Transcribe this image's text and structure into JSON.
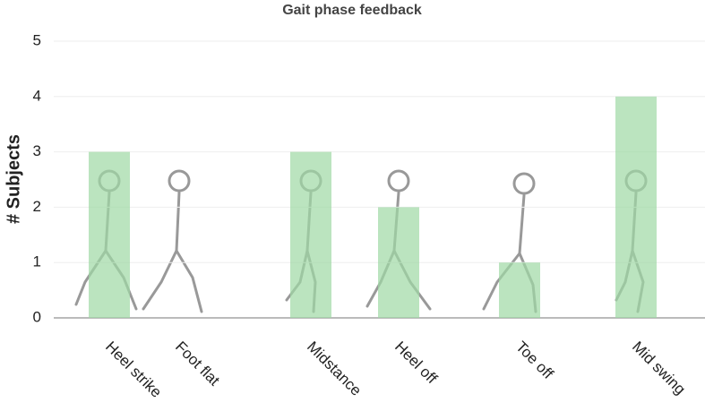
{
  "chart_data": {
    "type": "bar",
    "title": "Gait phase feedback",
    "y_label": "# Subjects",
    "categories": [
      "Heel strike",
      "Foot flat",
      "Midstance",
      "Heel off",
      "Toe off",
      "Mid swing"
    ],
    "values": [
      3,
      0,
      3,
      2,
      1,
      4
    ],
    "color": "#9ed8a4",
    "ylim": [
      0,
      5
    ],
    "yticks": [
      0,
      1,
      2,
      3,
      4,
      5
    ],
    "grid": true
  }
}
